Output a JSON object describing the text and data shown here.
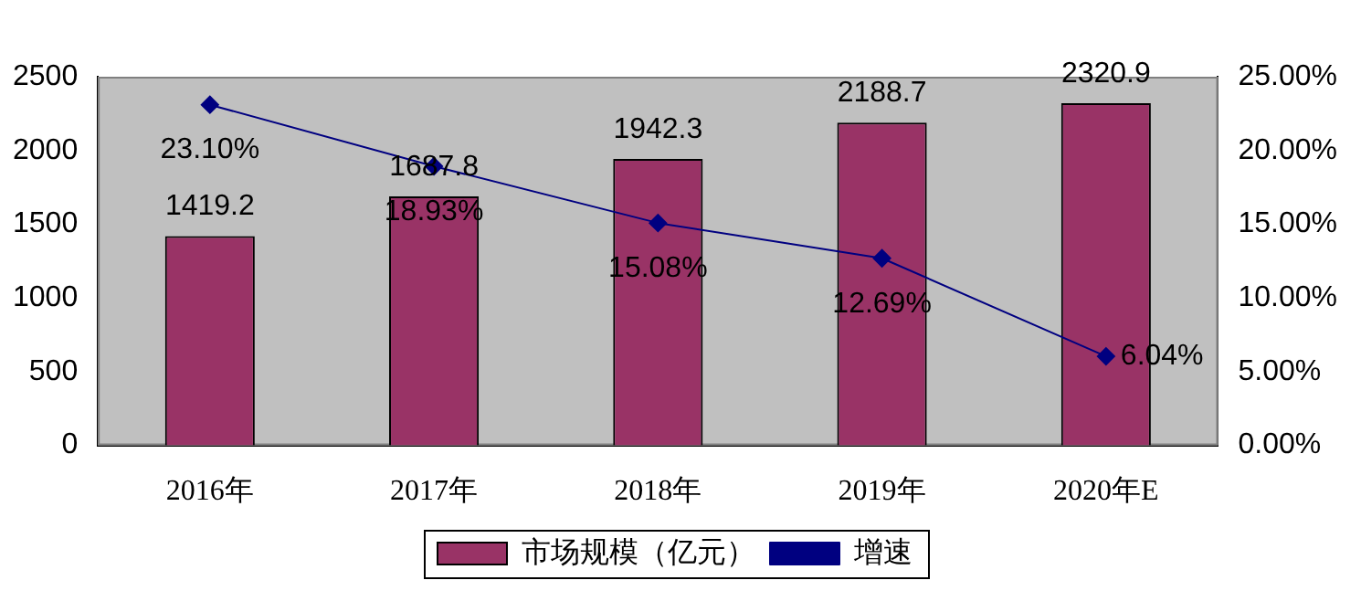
{
  "chart_data": {
    "type": "bar",
    "categories": [
      "2016年",
      "2017年",
      "2018年",
      "2019年",
      "2020年E"
    ],
    "series": [
      {
        "name": "市场规模（亿元）",
        "color": "#993366",
        "values": [
          1419.2,
          1687.8,
          1942.3,
          2188.7,
          2320.9
        ],
        "value_labels": [
          "1419.2",
          "1687.8",
          "1942.3",
          "2188.7",
          "2320.9"
        ]
      },
      {
        "name": "增速",
        "type": "line",
        "axis": "y2",
        "color": "#000080",
        "values": [
          23.1,
          18.93,
          15.08,
          12.69,
          6.04
        ],
        "value_labels": [
          "23.10%",
          "18.93%",
          "15.08%",
          "12.69%",
          "6.04%"
        ]
      }
    ],
    "ylim": [
      0,
      2500
    ],
    "yticks": [
      0,
      500,
      1000,
      1500,
      2000,
      2500
    ],
    "y2lim": [
      0,
      25
    ],
    "y2ticks": [
      {
        "value": 0,
        "label": "0.00%"
      },
      {
        "value": 5,
        "label": "5.00%"
      },
      {
        "value": 10,
        "label": "10.00%"
      },
      {
        "value": 15,
        "label": "15.00%"
      },
      {
        "value": 20,
        "label": "20.00%"
      },
      {
        "value": 25,
        "label": "25.00%"
      }
    ],
    "grid": false,
    "legend": "bottom",
    "marker": "diamond",
    "line_style": "solid"
  }
}
